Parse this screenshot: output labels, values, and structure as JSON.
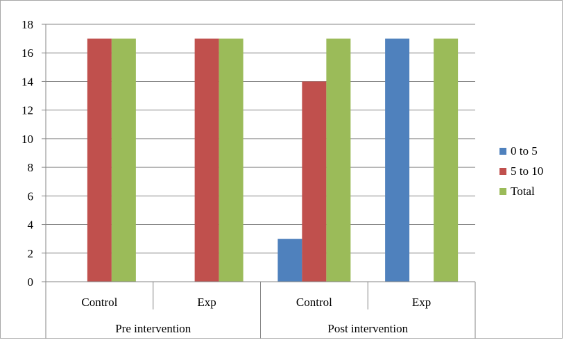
{
  "chart_data": {
    "type": "bar",
    "title": "",
    "xlabel": "",
    "ylabel": "",
    "ylim": [
      0,
      18
    ],
    "yticks": [
      0,
      2,
      4,
      6,
      8,
      10,
      12,
      14,
      16,
      18
    ],
    "grid": true,
    "legend_position": "right",
    "groups": [
      {
        "label": "Pre intervention",
        "categories": [
          "Control",
          "Exp"
        ]
      },
      {
        "label": "Post intervention",
        "categories": [
          "Control",
          "Exp"
        ]
      }
    ],
    "categories": [
      "Control",
      "Exp",
      "Control",
      "Exp"
    ],
    "series": [
      {
        "name": "0 to 5",
        "color": "#4F81BD",
        "values": [
          0,
          0,
          3,
          17
        ]
      },
      {
        "name": "5 to 10",
        "color": "#C0504D",
        "values": [
          17,
          17,
          14,
          0
        ]
      },
      {
        "name": "Total",
        "color": "#9BBB59",
        "values": [
          17,
          17,
          17,
          17
        ]
      }
    ]
  }
}
